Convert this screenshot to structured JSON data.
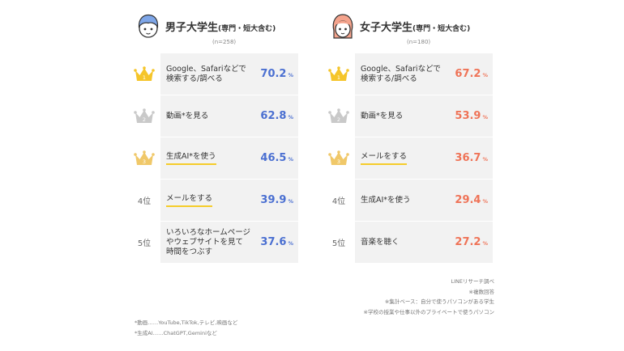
{
  "chart_data": [
    {
      "type": "table",
      "title": "男子大学生",
      "subtitle": "(専門・短大含む)",
      "n": "(n=258)",
      "value_suffix": "%",
      "categories": [
        "Google、Safariなどで検索する/調べる",
        "動画*を見る",
        "生成AI*を使う",
        "メールをする",
        "いろいろなホームページやウェブサイトを見て時間をつぶす"
      ],
      "values": [
        70.2,
        62.8,
        46.5,
        39.9,
        37.6
      ],
      "rows": [
        {
          "rank": "1",
          "label_lines": [
            "Google、Safariなどで",
            "検索する/調べる"
          ],
          "value": "70.2",
          "underline": false
        },
        {
          "rank": "2",
          "label_lines": [
            "動画*を見る"
          ],
          "value": "62.8",
          "underline": false
        },
        {
          "rank": "3",
          "label_lines": [
            "生成AI*を使う"
          ],
          "value": "46.5",
          "underline": true
        },
        {
          "rank": "4位",
          "label_lines": [
            "メールをする"
          ],
          "value": "39.9",
          "underline": true
        },
        {
          "rank": "5位",
          "label_lines": [
            "いろいろなホームページ",
            "やウェブサイトを見て",
            "時間をつぶす"
          ],
          "value": "37.6",
          "underline": false
        }
      ],
      "accent_color": "#4a6fd1"
    },
    {
      "type": "table",
      "title": "女子大学生",
      "subtitle": "(専門・短大含む)",
      "n": "(n=180)",
      "value_suffix": "%",
      "categories": [
        "Google、Safariなどで検索する/調べる",
        "動画*を見る",
        "メールをする",
        "生成AI*を使う",
        "音楽を聴く"
      ],
      "values": [
        67.2,
        53.9,
        36.7,
        29.4,
        27.2
      ],
      "rows": [
        {
          "rank": "1",
          "label_lines": [
            "Google、Safariなどで",
            "検索する/調べる"
          ],
          "value": "67.2",
          "underline": false
        },
        {
          "rank": "2",
          "label_lines": [
            "動画*を見る"
          ],
          "value": "53.9",
          "underline": false
        },
        {
          "rank": "3",
          "label_lines": [
            "メールをする"
          ],
          "value": "36.7",
          "underline": true
        },
        {
          "rank": "4位",
          "label_lines": [
            "生成AI*を使う"
          ],
          "value": "29.4",
          "underline": false
        },
        {
          "rank": "5位",
          "label_lines": [
            "音楽を聴く"
          ],
          "value": "27.2",
          "underline": false
        }
      ],
      "accent_color": "#ef7357"
    }
  ],
  "colors": {
    "gold": "#f5c52a",
    "silver": "#c9c9c9",
    "bronze": "#f0c869",
    "row_bg": "#f2f2f2",
    "underline": "#f5cc2a"
  },
  "icons": {
    "male": "male-student-avatar-icon",
    "female": "female-student-avatar-icon",
    "crown": "crown-icon"
  },
  "notes_right": [
    "LINEリサーチ調べ",
    "※複数回答",
    "※集計ベース：自分で使うパソコンがある学生",
    "※学校の授業や仕事以外のプライベートで使うパソコン"
  ],
  "notes_left": [
    "*動画……YouTube,TikTok,テレビ,映画など",
    "*生成AI……ChatGPT,Geminiなど"
  ]
}
